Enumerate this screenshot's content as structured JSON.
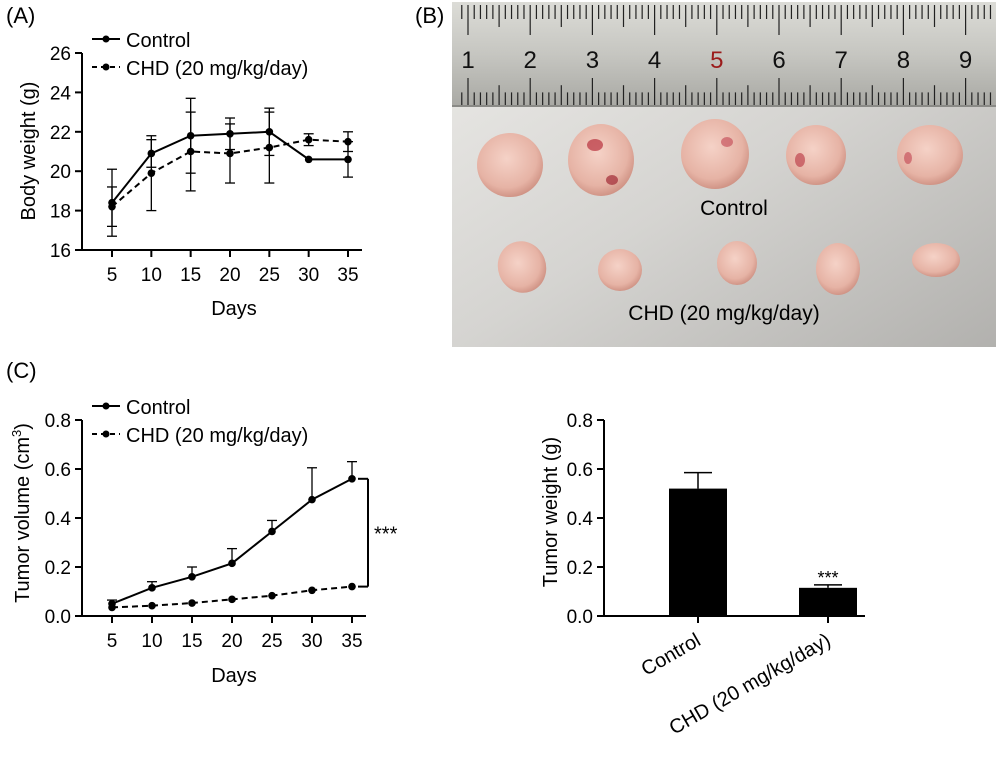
{
  "panels": {
    "a_label": "(A)",
    "b_label": "(B)",
    "c_label": "(C)"
  },
  "photo": {
    "ruler_numbers": [
      "1",
      "2",
      "3",
      "4",
      "5",
      "6",
      "7",
      "8",
      "9"
    ],
    "highlight_number": "5",
    "highlight_color": "#9b1b1b",
    "label_control": "Control",
    "label_chd": "CHD (20 mg/kg/day)"
  },
  "chart_data": [
    {
      "id": "body_weight",
      "type": "line",
      "x": [
        5,
        10,
        15,
        20,
        25,
        30,
        35
      ],
      "xlabel": "Days",
      "ylabel": "Body weight (g)",
      "ylim": [
        16,
        26
      ],
      "yticks": [
        16,
        18,
        20,
        22,
        24,
        26
      ],
      "yticklabels": [
        "16",
        "18",
        "20",
        "22",
        "24",
        "26"
      ],
      "xticklabels": [
        "5",
        "10",
        "15",
        "20",
        "25",
        "30",
        "35"
      ],
      "legend_position": "top-left",
      "series": [
        {
          "name": "Control",
          "style": "solid",
          "values": [
            18.4,
            20.9,
            21.8,
            21.9,
            22.0,
            20.6,
            20.6
          ],
          "errors": [
            1.7,
            0.7,
            1.9,
            0.8,
            1.2,
            0.0,
            0.9
          ]
        },
        {
          "name": "CHD (20 mg/kg/day)",
          "style": "dashed",
          "values": [
            18.2,
            19.9,
            21.0,
            20.9,
            21.2,
            21.6,
            21.5
          ],
          "errors": [
            1.0,
            1.9,
            2.0,
            1.5,
            1.8,
            0.3,
            0.5
          ]
        }
      ]
    },
    {
      "id": "tumor_volume",
      "type": "line",
      "x": [
        5,
        10,
        15,
        20,
        25,
        30,
        35
      ],
      "xlabel": "Days",
      "ylabel": "Tumor volume (cm",
      "ylabel_sup": "3",
      "ylabel_close": ")",
      "ylim": [
        0,
        0.8
      ],
      "yticks": [
        0,
        0.2,
        0.4,
        0.6,
        0.8
      ],
      "yticklabels": [
        "0.0",
        "0.2",
        "0.4",
        "0.6",
        "0.8"
      ],
      "xticklabels": [
        "5",
        "10",
        "15",
        "20",
        "25",
        "30",
        "35"
      ],
      "legend_position": "top-left",
      "significance": "***",
      "series": [
        {
          "name": "Control",
          "style": "solid",
          "values": [
            0.05,
            0.115,
            0.16,
            0.215,
            0.345,
            0.475,
            0.56
          ],
          "errors": [
            0.015,
            0.025,
            0.04,
            0.06,
            0.045,
            0.13,
            0.07
          ]
        },
        {
          "name": "CHD (20 mg/kg/day)",
          "style": "dashed",
          "values": [
            0.035,
            0.042,
            0.053,
            0.068,
            0.083,
            0.105,
            0.12
          ],
          "errors": [
            0.0,
            0.0,
            0.0,
            0.0,
            0.0,
            0.0,
            0.0
          ]
        }
      ]
    },
    {
      "id": "tumor_weight",
      "type": "bar",
      "categories": [
        "Control",
        "CHD (20 mg/kg/day)"
      ],
      "values": [
        0.52,
        0.115
      ],
      "errors": [
        0.065,
        0.012
      ],
      "ylabel": "Tumor weight (g)",
      "ylim": [
        0,
        0.8
      ],
      "yticks": [
        0,
        0.2,
        0.4,
        0.6,
        0.8
      ],
      "yticklabels": [
        "0.0",
        "0.2",
        "0.4",
        "0.6",
        "0.8"
      ],
      "significance": "***",
      "bar_color": "#000000"
    }
  ]
}
